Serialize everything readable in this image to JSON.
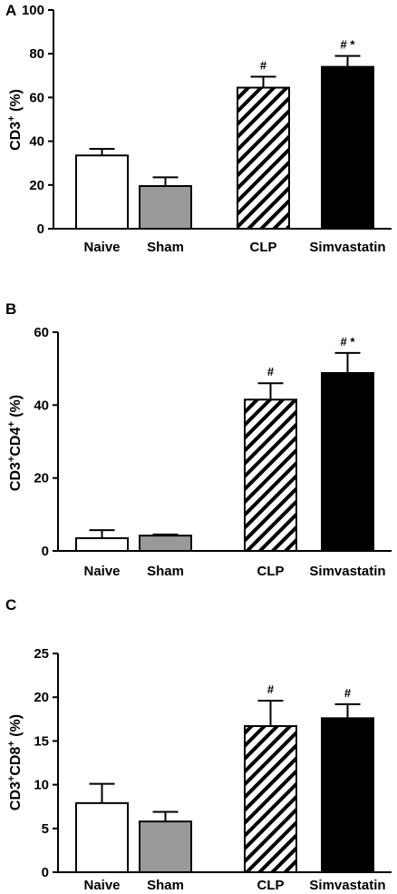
{
  "chart_data": [
    {
      "panel": "A",
      "type": "bar",
      "categories": [
        "Naive",
        "Sham",
        "CLP",
        "Simvastatin"
      ],
      "values": [
        33.5,
        19.5,
        64.5,
        74
      ],
      "errors": [
        3.0,
        4.0,
        5.0,
        5.0
      ],
      "annotations": [
        "",
        "",
        "#",
        "# *"
      ],
      "fills": [
        "white",
        "#999999",
        "hatch",
        "#000000"
      ],
      "ylabel": {
        "main": "CD3",
        "sup": "+",
        "unit": "(%)"
      },
      "ylim": [
        0,
        100
      ],
      "yticks": [
        0,
        20,
        40,
        60,
        80,
        100
      ]
    },
    {
      "panel": "B",
      "type": "bar",
      "categories": [
        "Naive",
        "Sham",
        "CLP",
        "Simvastatin"
      ],
      "values": [
        3.5,
        4.2,
        41.5,
        48.8
      ],
      "errors": [
        2.2,
        0.3,
        4.5,
        5.5
      ],
      "annotations": [
        "",
        "",
        "#",
        "# *"
      ],
      "fills": [
        "white",
        "#999999",
        "hatch",
        "#000000"
      ],
      "ylabel": {
        "main": "CD3",
        "sup": "+",
        "main2": "CD4",
        "sup2": "+",
        "unit": "(%)"
      },
      "ylim": [
        0,
        60
      ],
      "yticks": [
        0,
        20,
        40,
        60
      ]
    },
    {
      "panel": "C",
      "type": "bar",
      "categories": [
        "Naive",
        "Sham",
        "CLP",
        "Simvastatin"
      ],
      "values": [
        7.9,
        5.8,
        16.7,
        17.6
      ],
      "errors": [
        2.2,
        1.1,
        2.9,
        1.6
      ],
      "annotations": [
        "",
        "",
        "#",
        "#"
      ],
      "fills": [
        "white",
        "#999999",
        "hatch",
        "#000000"
      ],
      "ylabel": {
        "main": "CD3",
        "sup": "+",
        "main2": "CD8",
        "sup2": "+",
        "unit": "(%)"
      },
      "ylim": [
        0,
        25
      ],
      "yticks": [
        0,
        5,
        10,
        15,
        20,
        25
      ]
    }
  ]
}
